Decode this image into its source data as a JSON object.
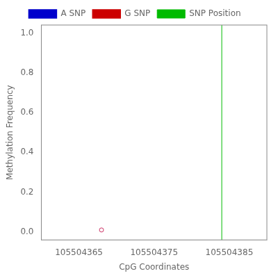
{
  "chart_data": {
    "type": "scatter",
    "xlabel": "CpG Coordinates",
    "ylabel": "Methylation Frequency",
    "xlim": [
      105504360,
      105504390
    ],
    "ylim": [
      -0.04,
      1.04
    ],
    "xticks": [
      105504365,
      105504375,
      105504385
    ],
    "yticks": [
      {
        "value": 0,
        "label": "0.0"
      },
      0.2,
      0.4,
      0.6,
      0.8,
      {
        "value": 1,
        "label": "1.0"
      }
    ],
    "grid": false,
    "legend": "top",
    "series": [
      {
        "color": "#cc3366",
        "marker": "circle",
        "x": [
          105504368
        ],
        "values": [
          0.01
        ]
      },
      {
        "name": "A SNP",
        "type": "line",
        "color": "#0000cc",
        "x": [],
        "values": []
      },
      {
        "name": "G SNP",
        "type": "line",
        "color": "#cc0000",
        "x": [],
        "values": []
      },
      {
        "name": "SNP Position",
        "type": "vline",
        "color": "#00bb00",
        "x": [
          105504384
        ]
      }
    ]
  }
}
